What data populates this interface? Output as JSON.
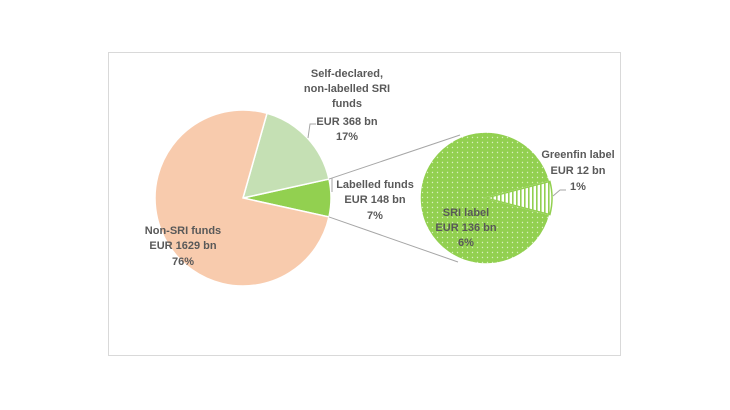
{
  "chart_data": {
    "type": "pie-of-pie",
    "main_pie": {
      "slices": [
        {
          "name": "Non-SRI funds",
          "value_text": "EUR 1629 bn",
          "value": 1629,
          "pct_text": "76%",
          "color": "#f8cbad"
        },
        {
          "name": "Self-declared, non-labelled SRI funds",
          "lines": [
            "Self-declared,",
            "non-labelled SRI",
            "funds"
          ],
          "value_text": "EUR 368 bn",
          "value": 368,
          "pct_text": "17%",
          "color": "#c5e0b4"
        },
        {
          "name": "Labelled funds",
          "value_text": "EUR 148 bn",
          "value": 148,
          "pct_text": "7%",
          "color": "#92d050"
        }
      ]
    },
    "secondary_pie": {
      "slices": [
        {
          "name": "SRI label",
          "value_text": "EUR 136 bn",
          "value": 136,
          "pct_text": "6%",
          "color": "#92d050",
          "pattern": "dots"
        },
        {
          "name": "Greenfin label",
          "value_text": "EUR 12 bn",
          "value": 12,
          "pct_text": "1%",
          "color": "#92d050",
          "pattern": "vertical-stripes"
        }
      ]
    },
    "connector_color": "#a6a6a6"
  }
}
